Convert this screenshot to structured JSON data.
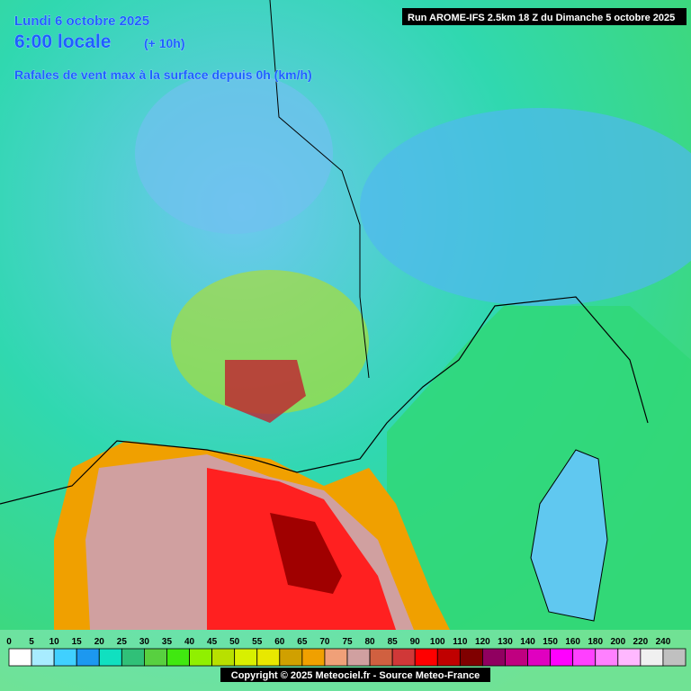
{
  "header": {
    "date": "Lundi 6 octobre 2025",
    "time": "6:00 locale",
    "offset": "(+ 10h)",
    "parameter": "Rafales de vent max à la surface depuis 0h (km/h)",
    "run": "Run AROME-IFS 2.5km 18 Z du Dimanche 5 octobre 2025"
  },
  "legend": {
    "values": [
      0,
      5,
      10,
      15,
      20,
      25,
      30,
      35,
      40,
      45,
      50,
      55,
      60,
      65,
      70,
      75,
      80,
      85,
      90,
      100,
      110,
      120,
      130,
      140,
      150,
      160,
      180,
      200,
      220,
      240
    ],
    "colors": [
      "#ffffff",
      "#a8ecff",
      "#40d0ff",
      "#1c98f0",
      "#10e0c0",
      "#30c078",
      "#58d040",
      "#40e810",
      "#90f000",
      "#b8e000",
      "#d8f000",
      "#e8e800",
      "#d0a000",
      "#f0a000",
      "#f0a078",
      "#d0a0a0",
      "#d06040",
      "#d03838",
      "#ff0000",
      "#c00000",
      "#800000",
      "#900060",
      "#c00080",
      "#e000c0",
      "#ff00ff",
      "#ff40ff",
      "#ff80ff",
      "#ffb8ff",
      "#f0f0f0",
      "#c0c0c0"
    ]
  },
  "footer": {
    "copyright": "Copyright © 2025 Meteociel.fr - Source Meteo-France"
  }
}
